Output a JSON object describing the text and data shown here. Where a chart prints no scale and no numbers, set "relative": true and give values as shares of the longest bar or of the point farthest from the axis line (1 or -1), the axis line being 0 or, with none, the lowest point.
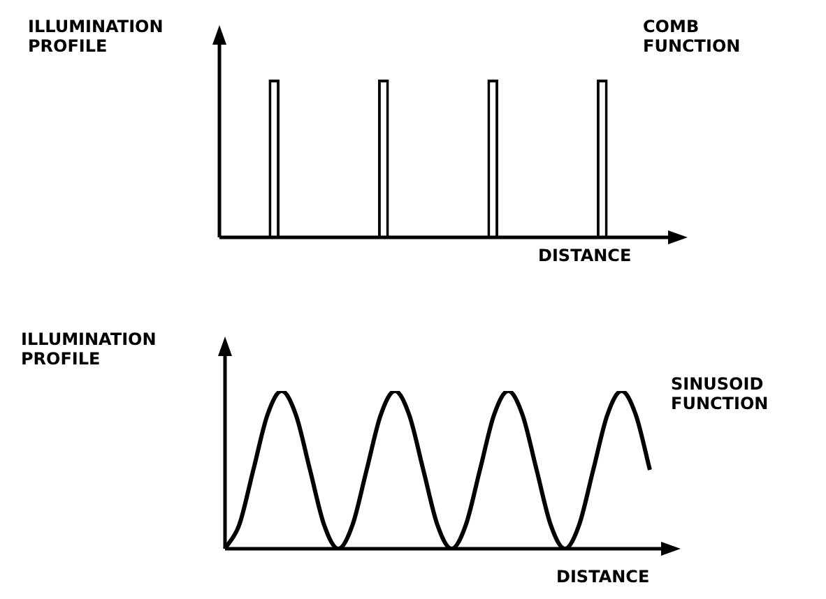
{
  "chart_data": [
    {
      "type": "bar",
      "title": "COMB FUNCTION",
      "xlabel": "DISTANCE",
      "ylabel": "ILLUMINATION PROFILE",
      "relative": true,
      "categories": [
        null,
        null,
        null,
        null
      ],
      "values": [
        1,
        1,
        1,
        1
      ],
      "color": "#000000"
    },
    {
      "type": "line",
      "title": "SINUSOID FUNCTION",
      "xlabel": "DISTANCE",
      "ylabel": "ILLUMINATION PROFILE",
      "relative": true,
      "categories": [
        null,
        null,
        null,
        null,
        null,
        null,
        null,
        null,
        null,
        null,
        null,
        null,
        null,
        null,
        null,
        null,
        null,
        null,
        null,
        null,
        null,
        null,
        null,
        null,
        null,
        null,
        null,
        null,
        null,
        null,
        null
      ],
      "values": [
        0,
        0.15,
        0.5,
        0.85,
        1,
        0.85,
        0.5,
        0.15,
        0,
        0.15,
        0.5,
        0.85,
        1,
        0.85,
        0.5,
        0.15,
        0,
        0.15,
        0.5,
        0.85,
        1,
        0.85,
        0.5,
        0.15,
        0,
        0.15,
        0.5,
        0.85,
        1,
        0.85,
        0.5
      ],
      "color": "#000000",
      "marker": "none"
    }
  ]
}
